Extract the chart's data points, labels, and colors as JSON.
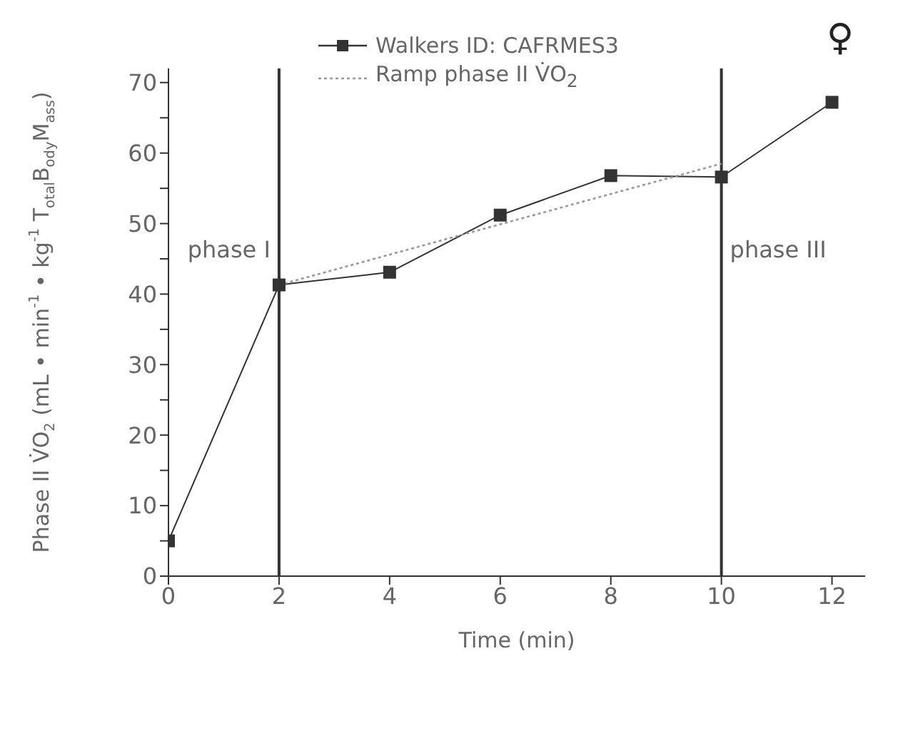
{
  "chart_data": {
    "type": "line",
    "xlabel": "Time (min)",
    "ylabel": "Phase II V̇O$_{2}$ (mL • min$^{-1}$ • kg$^{-1}$ T$_{otal}$B$_{ody}$M$_{ass}$)",
    "series": [
      {
        "name": "Walkers ID: CAFRMES3",
        "color": "#333333",
        "x": [
          0,
          2,
          4,
          6,
          8,
          10,
          12
        ],
        "values": [
          5,
          41.3,
          43.1,
          51.2,
          56.8,
          56.6,
          67.2
        ],
        "marker": "square",
        "line_style": "solid"
      },
      {
        "name": "Ramp phase II V̇O$_{2}$",
        "color": "#999999",
        "x": [
          2,
          10
        ],
        "values": [
          41.3,
          58.5
        ],
        "marker": "none",
        "line_style": "dotted"
      }
    ],
    "xlim": [
      0,
      12.6
    ],
    "xticks": [
      0,
      2,
      4,
      6,
      8,
      10,
      12
    ],
    "ylim": [
      0,
      72
    ],
    "yticks": [
      0,
      {
        "value": 5,
        "label": null
      },
      10,
      {
        "value": 15,
        "label": null
      },
      20,
      {
        "value": 25,
        "label": null
      },
      30,
      {
        "value": 35,
        "label": null
      },
      40,
      {
        "value": 45,
        "label": null
      },
      50,
      {
        "value": 55,
        "label": null
      },
      60,
      {
        "value": 65,
        "label": null
      },
      70
    ],
    "ref_lines": [
      {
        "axis": "x",
        "value": 2,
        "color": "#333333",
        "label": "phase I"
      },
      {
        "axis": "x",
        "value": 10,
        "color": "#333333",
        "label": "phase III"
      }
    ],
    "annotations": [
      "♀"
    ],
    "legend": "top"
  }
}
